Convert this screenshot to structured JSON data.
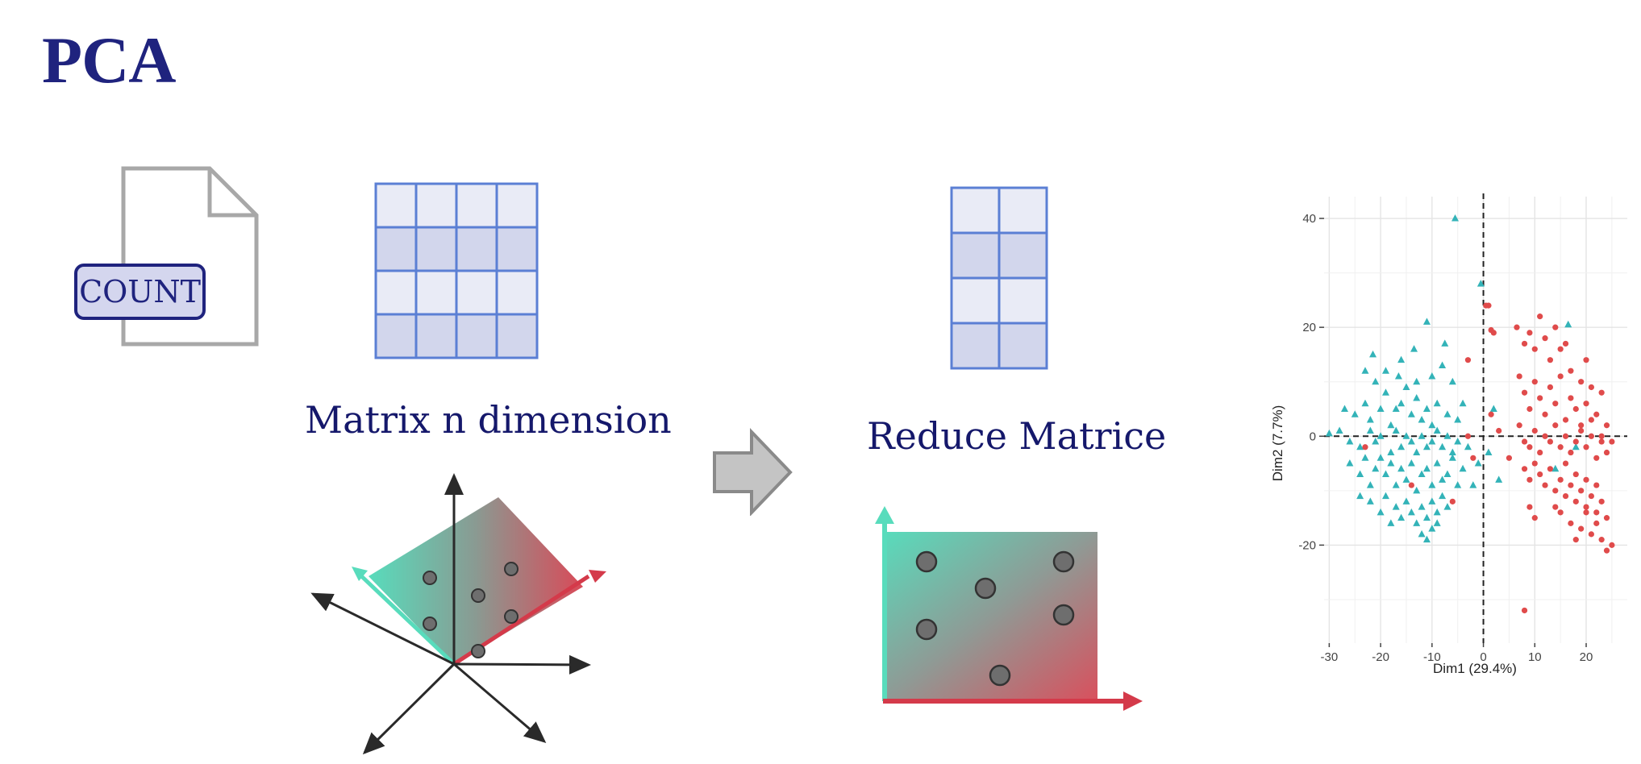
{
  "slide": {
    "title": "PCA",
    "file_label": "COUNT",
    "matrix_caption": "Matrix n dimension",
    "reduced_caption": "Reduce Matrice"
  },
  "icons": [
    "document-icon",
    "matrix-grid-icon",
    "right-arrow-icon",
    "3d-axes-plane-icon",
    "2d-projection-icon"
  ],
  "colors": {
    "title": "#1f237e",
    "grid_line": "#5b7fd4",
    "grid_fill_light": "#e9ebf6",
    "grid_fill_dark": "#d2d6ec",
    "teal": "#4fd1b4",
    "red": "#d43a4a",
    "series_triangle": "#33b3b8",
    "series_circle": "#e04b4b"
  },
  "chart_data": {
    "type": "scatter",
    "xlabel": "Dim1 (29.4%)",
    "ylabel": "Dim2 (7.7%)",
    "xlim": [
      -31,
      28
    ],
    "ylim": [
      -38,
      44
    ],
    "x_ticks": [
      -30,
      -20,
      -10,
      0,
      10,
      20
    ],
    "x_tick_labels": [
      "-30",
      "-20",
      "-10",
      "0",
      "10",
      "20"
    ],
    "y_ticks": [
      -20,
      0,
      20,
      40
    ],
    "y_tick_labels": [
      "-20",
      "0",
      "20",
      "40"
    ],
    "grid": true,
    "reference_lines": {
      "x": 0,
      "y": 0,
      "style": "dashed"
    },
    "series": [
      {
        "marker": "triangle",
        "color": "#33b3b8",
        "points": [
          [
            -5.5,
            40
          ],
          [
            -0.5,
            28
          ],
          [
            -11,
            21
          ],
          [
            16.5,
            20.5
          ],
          [
            -21.5,
            15
          ],
          [
            -16,
            14
          ],
          [
            -13.5,
            16
          ],
          [
            -7.5,
            17
          ],
          [
            -23,
            12
          ],
          [
            -21,
            10
          ],
          [
            -19,
            12
          ],
          [
            -16.5,
            11
          ],
          [
            -15,
            9
          ],
          [
            -13,
            10
          ],
          [
            -10,
            11
          ],
          [
            -8,
            13
          ],
          [
            -6,
            10
          ],
          [
            -27,
            5
          ],
          [
            -25,
            4
          ],
          [
            -23,
            6
          ],
          [
            -22,
            3
          ],
          [
            -20,
            5
          ],
          [
            -19,
            8
          ],
          [
            -18,
            2
          ],
          [
            -17,
            5
          ],
          [
            -16,
            6
          ],
          [
            -14,
            4
          ],
          [
            -13,
            7
          ],
          [
            -12,
            3
          ],
          [
            -11,
            5
          ],
          [
            -10,
            2
          ],
          [
            -9,
            6
          ],
          [
            -7,
            4
          ],
          [
            -5,
            3
          ],
          [
            -4,
            6
          ],
          [
            -30,
            0.5
          ],
          [
            -28,
            1
          ],
          [
            -26,
            -1
          ],
          [
            -24,
            -2
          ],
          [
            -22,
            1
          ],
          [
            -21,
            -1
          ],
          [
            -20,
            0
          ],
          [
            -18,
            -3
          ],
          [
            -17,
            1
          ],
          [
            -16,
            -2
          ],
          [
            -15,
            0
          ],
          [
            -14,
            -1
          ],
          [
            -13,
            -3
          ],
          [
            -12,
            0
          ],
          [
            -11,
            -2
          ],
          [
            -10,
            -1
          ],
          [
            -9,
            1
          ],
          [
            -8,
            -2
          ],
          [
            -7,
            0
          ],
          [
            -6,
            -3
          ],
          [
            -5,
            -1
          ],
          [
            -3,
            -2
          ],
          [
            -26,
            -5
          ],
          [
            -24,
            -7
          ],
          [
            -23,
            -4
          ],
          [
            -22,
            -9
          ],
          [
            -21,
            -6
          ],
          [
            -20,
            -4
          ],
          [
            -19,
            -7
          ],
          [
            -18,
            -5
          ],
          [
            -17,
            -9
          ],
          [
            -16,
            -6
          ],
          [
            -15,
            -8
          ],
          [
            -14,
            -5
          ],
          [
            -13,
            -10
          ],
          [
            -12,
            -7
          ],
          [
            -11,
            -6
          ],
          [
            -10,
            -9
          ],
          [
            -9,
            -5
          ],
          [
            -8,
            -8
          ],
          [
            -7,
            -7
          ],
          [
            -6,
            -4
          ],
          [
            -5,
            -9
          ],
          [
            -4,
            -6
          ],
          [
            -1,
            -5
          ],
          [
            1,
            -3
          ],
          [
            3,
            -8
          ],
          [
            -22,
            -12
          ],
          [
            -20,
            -14
          ],
          [
            -19,
            -11
          ],
          [
            -17,
            -13
          ],
          [
            -16,
            -15
          ],
          [
            -15,
            -12
          ],
          [
            -14,
            -14
          ],
          [
            -13,
            -16
          ],
          [
            -12,
            -13
          ],
          [
            -11,
            -15
          ],
          [
            -10,
            -12
          ],
          [
            -9,
            -14
          ],
          [
            -8,
            -11
          ],
          [
            -7,
            -13
          ],
          [
            -24,
            -11
          ],
          [
            -18,
            -16
          ],
          [
            -12,
            -18
          ],
          [
            -10,
            -17
          ],
          [
            -11,
            -19
          ],
          [
            -9,
            -16
          ],
          [
            18,
            -2
          ],
          [
            14,
            -6
          ],
          [
            2,
            5
          ],
          [
            -2,
            -9
          ]
        ]
      },
      {
        "marker": "circle",
        "color": "#e04b4b",
        "points": [
          [
            -6,
            -12
          ],
          [
            -3,
            14
          ],
          [
            -2,
            -4
          ],
          [
            -3,
            0
          ],
          [
            -23,
            -2
          ],
          [
            -14,
            -9
          ],
          [
            1,
            24
          ],
          [
            1.5,
            19.5
          ],
          [
            2,
            19
          ],
          [
            1.5,
            4
          ],
          [
            0.5,
            24
          ],
          [
            6.5,
            20
          ],
          [
            8,
            17
          ],
          [
            9,
            19
          ],
          [
            10,
            16
          ],
          [
            11,
            22
          ],
          [
            12,
            18
          ],
          [
            13,
            14
          ],
          [
            14,
            20
          ],
          [
            15,
            16
          ],
          [
            17,
            12
          ],
          [
            19,
            10
          ],
          [
            21,
            9
          ],
          [
            7,
            11
          ],
          [
            8,
            8
          ],
          [
            9,
            5
          ],
          [
            10,
            10
          ],
          [
            11,
            7
          ],
          [
            12,
            4
          ],
          [
            13,
            9
          ],
          [
            14,
            6
          ],
          [
            15,
            11
          ],
          [
            16,
            3
          ],
          [
            17,
            7
          ],
          [
            18,
            5
          ],
          [
            19,
            2
          ],
          [
            20,
            6
          ],
          [
            21,
            3
          ],
          [
            22,
            4
          ],
          [
            23,
            0
          ],
          [
            24,
            2
          ],
          [
            7,
            2
          ],
          [
            8,
            -1
          ],
          [
            9,
            -2
          ],
          [
            10,
            1
          ],
          [
            11,
            -3
          ],
          [
            12,
            0
          ],
          [
            13,
            -1
          ],
          [
            14,
            2
          ],
          [
            15,
            -2
          ],
          [
            16,
            0
          ],
          [
            17,
            -3
          ],
          [
            18,
            -1
          ],
          [
            19,
            1
          ],
          [
            20,
            -2
          ],
          [
            21,
            0
          ],
          [
            22,
            -4
          ],
          [
            23,
            -1
          ],
          [
            24,
            -3
          ],
          [
            25,
            -1
          ],
          [
            8,
            -6
          ],
          [
            9,
            -8
          ],
          [
            10,
            -5
          ],
          [
            11,
            -7
          ],
          [
            12,
            -9
          ],
          [
            13,
            -6
          ],
          [
            14,
            -10
          ],
          [
            15,
            -8
          ],
          [
            16,
            -11
          ],
          [
            17,
            -9
          ],
          [
            18,
            -12
          ],
          [
            19,
            -10
          ],
          [
            20,
            -13
          ],
          [
            21,
            -11
          ],
          [
            22,
            -14
          ],
          [
            23,
            -12
          ],
          [
            24,
            -15
          ],
          [
            15,
            -14
          ],
          [
            17,
            -16
          ],
          [
            18,
            -19
          ],
          [
            19,
            -17
          ],
          [
            20,
            -14
          ],
          [
            21,
            -18
          ],
          [
            22,
            -16
          ],
          [
            23,
            -19
          ],
          [
            24,
            -21
          ],
          [
            25,
            -20
          ],
          [
            10,
            -15
          ],
          [
            14,
            -13
          ],
          [
            20,
            -8
          ],
          [
            22,
            -9
          ],
          [
            16,
            -5
          ],
          [
            18,
            -7
          ],
          [
            9,
            -13
          ],
          [
            8,
            -32
          ],
          [
            5,
            -4
          ],
          [
            3,
            1
          ],
          [
            16,
            17
          ],
          [
            20,
            14
          ],
          [
            23,
            8
          ]
        ]
      }
    ]
  }
}
